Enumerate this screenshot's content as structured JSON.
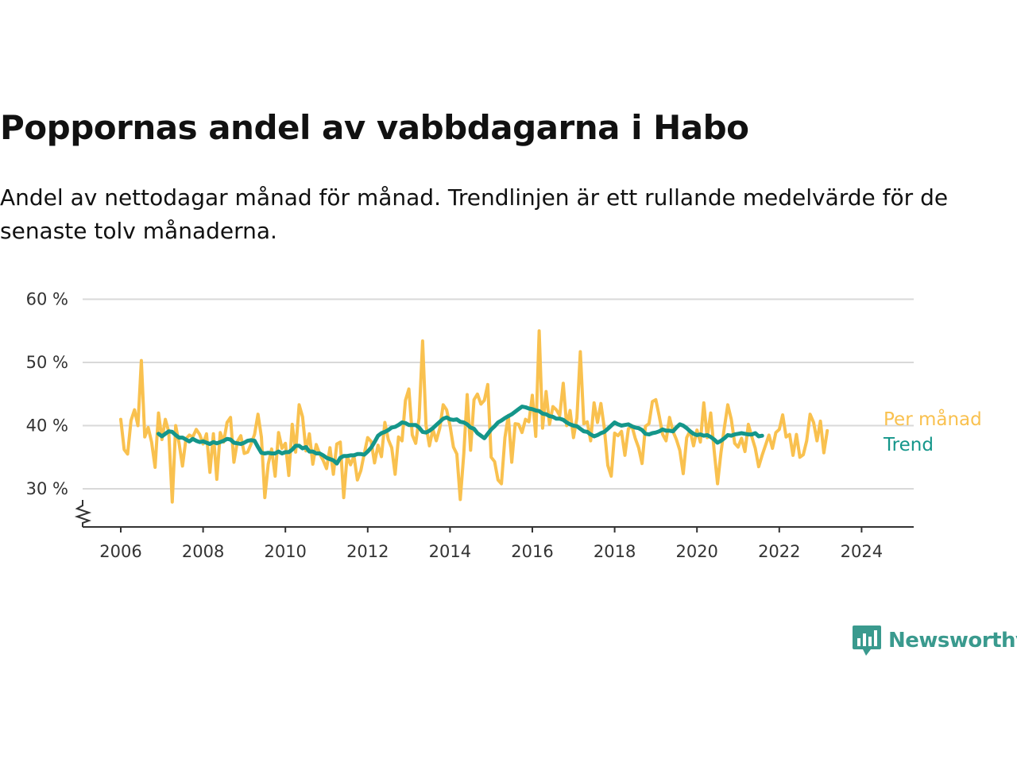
{
  "title": "Poppornas andel av vabbdagarna i Habo",
  "subtitle": "Andel av nettodagar månad för månad. Trendlinjen är ett rullande medelvärde för de senaste tolv månaderna.",
  "brand": {
    "name": "Newsworthy",
    "color": "#3a9a8e",
    "icon": "newsworthy-logo-icon"
  },
  "colors": {
    "monthly": "#f9c14f",
    "trend": "#14968a",
    "grid": "#d9d9d9",
    "axis": "#333333"
  },
  "chart_data": {
    "type": "line",
    "x_ticks": [
      "2006",
      "2008",
      "2010",
      "2012",
      "2014",
      "2016",
      "2018",
      "2020",
      "2022",
      "2024"
    ],
    "y_ticks": [
      "30 %",
      "40 %",
      "50 %",
      "60 %"
    ],
    "y_tick_values": [
      30,
      40,
      50,
      60
    ],
    "ylim": [
      24,
      60
    ],
    "x_start": "2006-01",
    "y_axis_break": true,
    "grid": true,
    "legend_placement": "line-end labels",
    "series": [
      {
        "name": "Per månad",
        "color": "#f9c14f",
        "values": [
          41.0,
          36.2,
          35.5,
          40.8,
          42.5,
          40.0,
          50.3,
          38.2,
          39.7,
          37.4,
          33.4,
          42.0,
          37.8,
          41.0,
          39.0,
          27.9,
          40.0,
          37.2,
          33.6,
          37.9,
          38.5,
          38.2,
          39.4,
          38.6,
          37.1,
          38.7,
          32.6,
          38.7,
          31.5,
          38.9,
          37.4,
          40.5,
          41.3,
          34.2,
          37.5,
          38.4,
          35.6,
          35.8,
          37.1,
          38.6,
          41.8,
          38.2,
          28.6,
          33.9,
          36.3,
          32.0,
          38.9,
          36.4,
          37.2,
          32.1,
          40.2,
          35.8,
          43.3,
          41.4,
          36.0,
          38.7,
          33.9,
          37.0,
          35.5,
          34.5,
          33.2,
          36.5,
          32.3,
          37.1,
          37.4,
          28.6,
          35.2,
          33.8,
          35.2,
          31.4,
          32.9,
          35.6,
          38.1,
          37.5,
          34.1,
          36.9,
          35.1,
          40.5,
          37.8,
          36.5,
          32.3,
          38.2,
          37.6,
          44.0,
          45.8,
          38.5,
          37.2,
          41.2,
          53.4,
          40.0,
          36.8,
          39.4,
          37.6,
          39.6,
          43.3,
          42.5,
          40.0,
          36.6,
          35.5,
          28.3,
          35.5,
          44.9,
          36.1,
          44.1,
          45.0,
          43.4,
          44.0,
          46.5,
          35.0,
          34.3,
          31.4,
          30.8,
          38.1,
          41.6,
          34.2,
          40.3,
          40.2,
          38.9,
          41.0,
          40.6,
          44.8,
          38.3,
          55.0,
          39.6,
          45.4,
          40.2,
          43.0,
          42.5,
          41.6,
          46.7,
          40.0,
          42.4,
          38.1,
          41.2,
          51.7,
          40.3,
          40.6,
          37.6,
          43.6,
          40.5,
          43.5,
          39.6,
          33.7,
          32.0,
          38.8,
          38.4,
          39.1,
          35.3,
          39.5,
          40.0,
          38.0,
          36.5,
          34.0,
          39.9,
          40.3,
          43.8,
          44.1,
          41.5,
          38.6,
          37.6,
          41.3,
          39.1,
          37.8,
          36.1,
          32.4,
          38.1,
          39.2,
          36.8,
          39.3,
          37.4,
          43.6,
          38.1,
          42.0,
          36.1,
          30.8,
          35.7,
          39.7,
          43.3,
          41.0,
          37.2,
          36.6,
          38.0,
          35.9,
          40.2,
          38.2,
          36.4,
          33.5,
          35.3,
          36.9,
          38.5,
          36.4,
          38.9,
          39.4,
          41.7,
          38.2,
          38.6,
          35.3,
          38.6,
          35.0,
          35.4,
          37.6,
          41.8,
          40.5,
          37.6,
          40.7,
          35.7,
          39.2
        ]
      },
      {
        "name": "Trend",
        "color": "#14968a",
        "start_index": 11,
        "values": [
          38.7,
          38.3,
          38.7,
          39.1,
          39.0,
          38.5,
          38.1,
          38.1,
          37.8,
          37.5,
          37.9,
          37.6,
          37.4,
          37.5,
          37.3,
          37.1,
          37.4,
          37.2,
          37.4,
          37.6,
          37.9,
          37.8,
          37.3,
          37.2,
          37.1,
          37.3,
          37.6,
          37.7,
          37.6,
          36.6,
          35.7,
          35.6,
          35.7,
          35.6,
          35.6,
          35.9,
          35.6,
          35.8,
          35.8,
          36.2,
          36.8,
          36.8,
          36.4,
          36.6,
          35.9,
          35.9,
          35.6,
          35.6,
          35.3,
          34.9,
          34.7,
          34.5,
          34.0,
          34.9,
          35.2,
          35.2,
          35.3,
          35.3,
          35.5,
          35.5,
          35.4,
          35.9,
          36.5,
          37.4,
          38.4,
          38.8,
          39.0,
          39.3,
          39.7,
          39.8,
          40.1,
          40.5,
          40.4,
          40.1,
          40.1,
          40.1,
          39.7,
          39.0,
          38.9,
          39.2,
          39.6,
          40.1,
          40.6,
          41.1,
          41.3,
          41.0,
          40.9,
          41.0,
          40.6,
          40.5,
          40.2,
          39.7,
          39.5,
          38.8,
          38.4,
          38.0,
          38.7,
          39.4,
          39.9,
          40.5,
          40.8,
          41.2,
          41.5,
          41.8,
          42.2,
          42.6,
          43.0,
          42.9,
          42.7,
          42.6,
          42.4,
          42.3,
          41.9,
          41.8,
          41.5,
          41.4,
          41.1,
          41.1,
          40.9,
          40.5,
          40.2,
          40.0,
          39.9,
          39.5,
          39.1,
          39.0,
          38.6,
          38.3,
          38.5,
          38.8,
          39.0,
          39.5,
          40.0,
          40.5,
          40.2,
          40.0,
          40.1,
          40.2,
          39.9,
          39.7,
          39.6,
          39.3,
          38.7,
          38.6,
          38.8,
          38.9,
          39.1,
          39.4,
          39.2,
          39.2,
          39.1,
          39.7,
          40.2,
          40.0,
          39.6,
          39.1,
          38.7,
          38.5,
          38.6,
          38.4,
          38.5,
          38.2,
          37.8,
          37.3,
          37.6,
          38.0,
          38.5,
          38.4,
          38.6,
          38.7,
          38.8,
          38.7,
          38.6,
          38.6,
          38.8,
          38.3,
          38.4
        ]
      }
    ]
  }
}
